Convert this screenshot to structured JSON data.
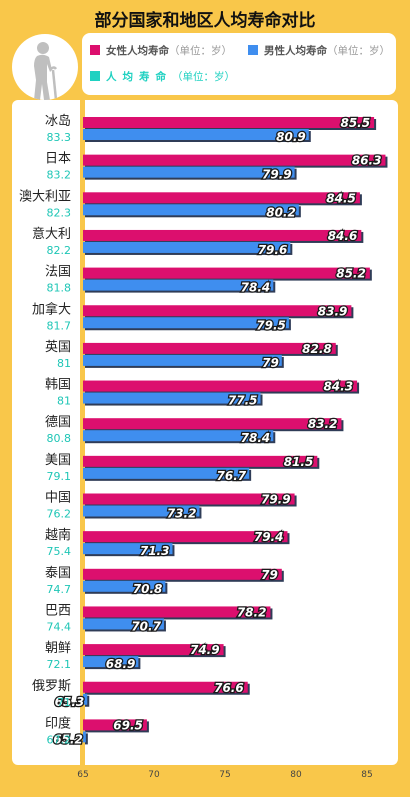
{
  "title": "部分国家和地区人均寿命对比",
  "legend": {
    "female_label": "女性人均寿命",
    "male_label": "男性人均寿命",
    "total_label": "人均寿命",
    "unit": "（单位：岁）"
  },
  "colors": {
    "female": "#DC0F6E",
    "male": "#3F8EEF",
    "total": "#1FC6B6",
    "background": "#F9C74A"
  },
  "chart_data": {
    "type": "bar",
    "orientation": "horizontal",
    "title": "部分国家和地区人均寿命对比",
    "categories": [
      "冰岛",
      "日本",
      "澳大利亚",
      "意大利",
      "法国",
      "加拿大",
      "英国",
      "韩国",
      "德国",
      "美国",
      "中国",
      "越南",
      "泰国",
      "巴西",
      "朝鲜",
      "俄罗斯",
      "印度"
    ],
    "series": [
      {
        "name": "女性人均寿命",
        "values": [
          85.5,
          86.3,
          84.5,
          84.6,
          85.2,
          83.9,
          82.8,
          84.3,
          83.2,
          81.5,
          79.9,
          79.4,
          79,
          78.2,
          74.9,
          76.6,
          69.5
        ]
      },
      {
        "name": "男性人均寿命",
        "values": [
          80.9,
          79.9,
          80.2,
          79.6,
          78.4,
          79.5,
          79,
          77.5,
          78.4,
          76.7,
          73.2,
          71.3,
          70.8,
          70.7,
          68.9,
          65.3,
          65.2
        ]
      },
      {
        "name": "人均寿命",
        "values": [
          83.3,
          83.2,
          82.3,
          82.2,
          81.8,
          81.7,
          81,
          81,
          80.8,
          79.1,
          76.2,
          75.4,
          74.7,
          74.4,
          72.1,
          71,
          67.2
        ]
      }
    ],
    "unit": "岁",
    "xlim": [
      65,
      87
    ],
    "xticks": [
      65,
      70,
      75,
      80,
      85
    ]
  }
}
